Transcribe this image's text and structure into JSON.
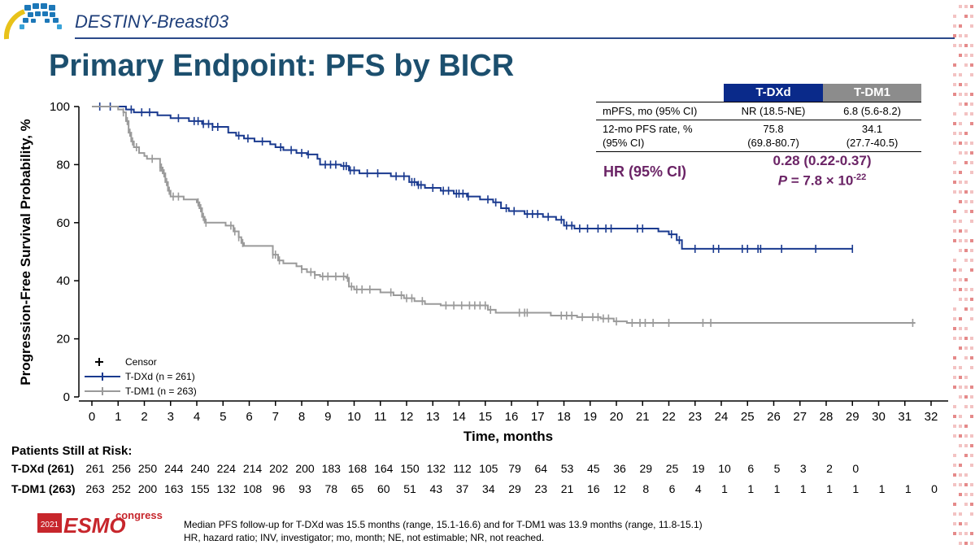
{
  "header": {
    "study_name": "DESTINY-Breast03",
    "title": "Primary Endpoint: PFS by BICR"
  },
  "colors": {
    "tdxd": "#1a3a8f",
    "tdm1": "#9a9a9a",
    "hr_text": "#6b2466",
    "title": "#1c4f6e"
  },
  "chart_data": {
    "type": "line",
    "subtype": "kaplan-meier",
    "xlabel": "Time,  months",
    "ylabel": "Progression-Free Survival Probability, %",
    "xlim": [
      0,
      32
    ],
    "ylim": [
      0,
      100
    ],
    "x_ticks": [
      0,
      1,
      2,
      3,
      4,
      5,
      6,
      7,
      8,
      9,
      10,
      11,
      12,
      13,
      14,
      15,
      16,
      17,
      18,
      19,
      20,
      21,
      22,
      23,
      24,
      25,
      26,
      27,
      28,
      29,
      30,
      31,
      32
    ],
    "y_ticks": [
      0,
      20,
      40,
      60,
      80,
      100
    ],
    "grid": false,
    "legend_position": "bottom-left",
    "series": [
      {
        "name": "T-DXd (n = 261)",
        "color": "#1a3a8f",
        "steps": [
          [
            0,
            100
          ],
          [
            1.3,
            99
          ],
          [
            1.6,
            98
          ],
          [
            2.5,
            97
          ],
          [
            3,
            96
          ],
          [
            3.7,
            95
          ],
          [
            4.2,
            94
          ],
          [
            4.6,
            93
          ],
          [
            5.2,
            91
          ],
          [
            5.5,
            90
          ],
          [
            5.8,
            89
          ],
          [
            6.2,
            88
          ],
          [
            6.8,
            87
          ],
          [
            7,
            86
          ],
          [
            7.3,
            85
          ],
          [
            7.8,
            84
          ],
          [
            8.2,
            83.5
          ],
          [
            8.6,
            82
          ],
          [
            8.7,
            80
          ],
          [
            9.5,
            79.5
          ],
          [
            9.8,
            78
          ],
          [
            10.2,
            77
          ],
          [
            10.8,
            77
          ],
          [
            11.4,
            76
          ],
          [
            12.1,
            74
          ],
          [
            12.4,
            73
          ],
          [
            12.7,
            72
          ],
          [
            13.3,
            71
          ],
          [
            13.8,
            70
          ],
          [
            14.3,
            69
          ],
          [
            14.8,
            68
          ],
          [
            15.3,
            67
          ],
          [
            15.6,
            65
          ],
          [
            15.9,
            64
          ],
          [
            16.5,
            63
          ],
          [
            17.2,
            62
          ],
          [
            17.7,
            61
          ],
          [
            18,
            59
          ],
          [
            18.4,
            58
          ],
          [
            19.5,
            58
          ],
          [
            21.2,
            58
          ],
          [
            21.6,
            57
          ],
          [
            22,
            56
          ],
          [
            22.3,
            54
          ],
          [
            22.5,
            51
          ],
          [
            29,
            51
          ]
        ],
        "censor": [
          0.3,
          0.7,
          1.5,
          1.9,
          2.2,
          3.3,
          3.9,
          4.05,
          4.25,
          4.45,
          4.6,
          4.8,
          5.6,
          5.95,
          6.5,
          7.2,
          7.6,
          8.0,
          8.25,
          8.9,
          9.1,
          9.3,
          9.6,
          9.7,
          9.85,
          10.0,
          10.5,
          10.9,
          11.6,
          11.9,
          12.2,
          12.3,
          12.45,
          12.55,
          13.0,
          13.4,
          13.6,
          13.9,
          14.0,
          14.15,
          14.35,
          15.1,
          15.4,
          15.8,
          16.1,
          16.6,
          16.8,
          17.0,
          17.4,
          17.9,
          18.1,
          18.3,
          18.6,
          18.9,
          19.3,
          19.6,
          19.8,
          20.8,
          21.0,
          22.1,
          22.4,
          23.0,
          23.7,
          23.9,
          24.8,
          25.0,
          25.4,
          25.5,
          26.3,
          27.6,
          29.0
        ],
        "at_risk": [
          261,
          256,
          250,
          244,
          240,
          224,
          214,
          202,
          200,
          183,
          168,
          164,
          150,
          132,
          112,
          105,
          79,
          64,
          53,
          45,
          36,
          29,
          25,
          19,
          10,
          6,
          5,
          3,
          2,
          0
        ]
      },
      {
        "name": "T-DM1 (n = 263)",
        "color": "#9a9a9a",
        "steps": [
          [
            0,
            100
          ],
          [
            1,
            99
          ],
          [
            1.2,
            98
          ],
          [
            1.3,
            95
          ],
          [
            1.4,
            91
          ],
          [
            1.5,
            88
          ],
          [
            1.6,
            86
          ],
          [
            1.8,
            84
          ],
          [
            2,
            83
          ],
          [
            2.1,
            82
          ],
          [
            2.2,
            82
          ],
          [
            2.55,
            82
          ],
          [
            2.6,
            79
          ],
          [
            2.7,
            77
          ],
          [
            2.8,
            74
          ],
          [
            2.9,
            71
          ],
          [
            3,
            69
          ],
          [
            3.5,
            68
          ],
          [
            4.0,
            67
          ],
          [
            4.1,
            65
          ],
          [
            4.2,
            62
          ],
          [
            4.3,
            60
          ],
          [
            5.1,
            59
          ],
          [
            5.4,
            57
          ],
          [
            5.6,
            55
          ],
          [
            5.7,
            53
          ],
          [
            5.8,
            52
          ],
          [
            6.8,
            52
          ],
          [
            6.9,
            49
          ],
          [
            7.1,
            47
          ],
          [
            7.3,
            46
          ],
          [
            7.8,
            45
          ],
          [
            8.0,
            44
          ],
          [
            8.2,
            43
          ],
          [
            8.5,
            42
          ],
          [
            8.7,
            41.5
          ],
          [
            9.7,
            41
          ],
          [
            9.8,
            38
          ],
          [
            10.0,
            37
          ],
          [
            10.4,
            37
          ],
          [
            11.0,
            36
          ],
          [
            11.5,
            35
          ],
          [
            11.9,
            34
          ],
          [
            12.3,
            33
          ],
          [
            12.7,
            32
          ],
          [
            13.3,
            31.5
          ],
          [
            15.1,
            30
          ],
          [
            15.4,
            29
          ],
          [
            16.2,
            29
          ],
          [
            17.5,
            28
          ],
          [
            18.5,
            27.5
          ],
          [
            19.4,
            27
          ],
          [
            19.9,
            26
          ],
          [
            20.4,
            25.5
          ],
          [
            31.4,
            25.5
          ]
        ],
        "censor": [
          1.2,
          1.35,
          1.45,
          1.55,
          1.7,
          2.3,
          2.6,
          2.65,
          2.75,
          2.85,
          2.95,
          3.1,
          3.3,
          4.05,
          4.15,
          4.25,
          4.35,
          5.3,
          5.45,
          5.6,
          5.75,
          6.9,
          7.0,
          7.15,
          8.0,
          8.35,
          8.5,
          8.8,
          9.0,
          9.3,
          9.6,
          9.75,
          9.9,
          10.1,
          10.3,
          10.6,
          11.4,
          11.8,
          12.0,
          12.2,
          12.6,
          13.5,
          13.8,
          14.1,
          14.4,
          14.6,
          14.8,
          15.0,
          15.2,
          16.3,
          16.5,
          16.6,
          17.9,
          18.1,
          18.3,
          18.7,
          19.1,
          19.3,
          19.5,
          19.7,
          20.0,
          20.6,
          20.9,
          21.1,
          21.4,
          22.0,
          23.3,
          23.6,
          31.3
        ],
        "at_risk": [
          263,
          252,
          200,
          163,
          155,
          132,
          108,
          96,
          93,
          78,
          65,
          60,
          51,
          43,
          37,
          34,
          29,
          23,
          21,
          16,
          12,
          8,
          6,
          4,
          1,
          1,
          1,
          1,
          1,
          1,
          1,
          1,
          0
        ]
      }
    ],
    "legend": {
      "censor_label": "Censor",
      "items": [
        "T-DXd (n = 261)",
        "T-DM1 (n = 263)"
      ]
    }
  },
  "stats_table": {
    "col1": "T-DXd",
    "col2": "T-DM1",
    "row1_label": "mPFS, mo (95% CI)",
    "row1_tdxd": "NR (18.5-NE)",
    "row1_tdm1": "6.8 (5.6-8.2)",
    "row2_label_a": "12-mo PFS rate, %",
    "row2_label_b": "(95% CI)",
    "row2_tdxd_a": "75.8",
    "row2_tdxd_b": "(69.8-80.7)",
    "row2_tdm1_a": "34.1",
    "row2_tdm1_b": "(27.7-40.5)",
    "hr_label": "HR (95% CI)",
    "hr_value": "0.28 (0.22-0.37)",
    "p_prefix": "P",
    "p_value_text": " = 7.8 × 10",
    "p_exponent": "-22"
  },
  "at_risk": {
    "title": "Patients Still at Risk:",
    "tdxd_label": "T-DXd (261)",
    "tdm1_label": "T-DM1 (263)"
  },
  "footer": {
    "logo_year": "2021",
    "logo_esmo": "ESMO",
    "logo_congress": "congress",
    "note1": "Median PFS follow-up for T-DXd was 15.5 months (range, 15.1-16.6) and for T-DM1 was 13.9 months (range, 11.8-15.1)",
    "note2": "HR, hazard ratio; INV, investigator; mo, month; NE, not estimable; NR, not reached."
  }
}
